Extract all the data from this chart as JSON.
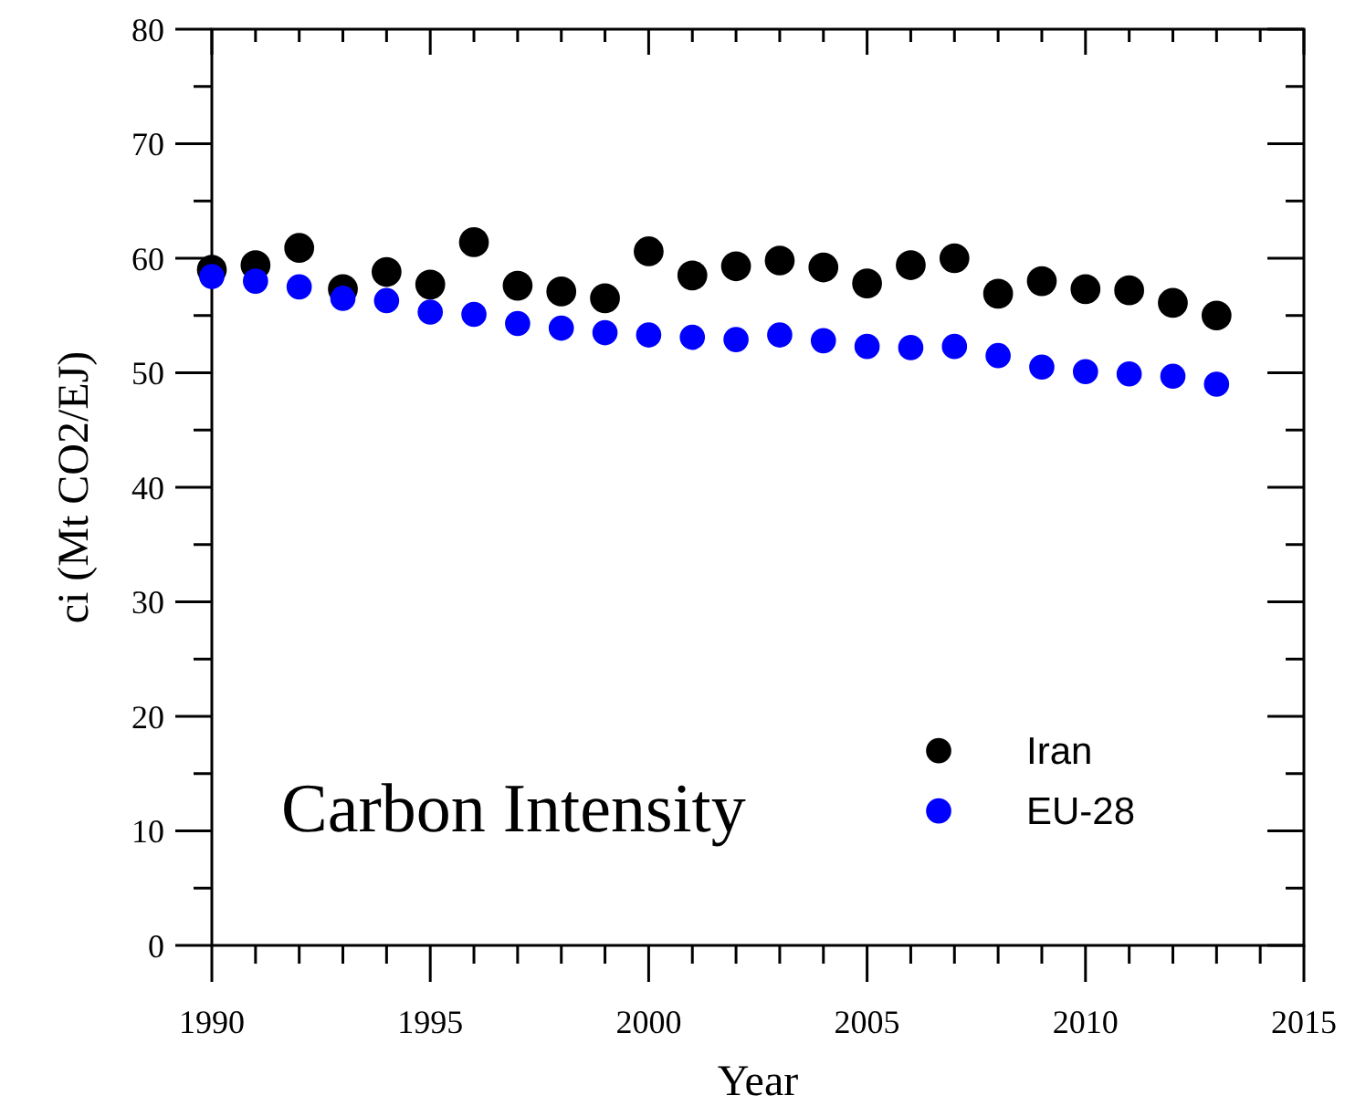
{
  "chart_data": {
    "type": "scatter",
    "xlabel": "Year",
    "ylabel": "ci (Mt CO2/EJ)",
    "annotations": [
      "Carbon Intensity"
    ],
    "x": [
      1990,
      1991,
      1992,
      1993,
      1994,
      1995,
      1996,
      1997,
      1998,
      1999,
      2000,
      2001,
      2002,
      2003,
      2004,
      2005,
      2006,
      2007,
      2008,
      2009,
      2010,
      2011,
      2012,
      2013
    ],
    "series": [
      {
        "name": "Iran",
        "color": "#000000",
        "values": [
          59.0,
          59.4,
          60.9,
          57.3,
          58.8,
          57.7,
          61.4,
          57.6,
          57.1,
          56.5,
          60.6,
          58.5,
          59.3,
          59.8,
          59.2,
          57.8,
          59.4,
          60.0,
          56.9,
          58.0,
          57.3,
          57.2,
          56.1,
          55.0
        ]
      },
      {
        "name": "EU-28",
        "color": "#0000ff",
        "values": [
          58.4,
          58.0,
          57.5,
          56.5,
          56.3,
          55.3,
          55.1,
          54.3,
          53.9,
          53.5,
          53.3,
          53.1,
          52.9,
          53.3,
          52.8,
          52.3,
          52.2,
          52.3,
          51.5,
          50.5,
          50.1,
          49.9,
          49.7,
          49.0
        ]
      }
    ],
    "xlim": [
      1990,
      2015
    ],
    "xticks": [
      1990,
      {
        "value": 1991,
        "label": null
      },
      {
        "value": 1992,
        "label": null
      },
      {
        "value": 1993,
        "label": null
      },
      {
        "value": 1994,
        "label": null
      },
      1995,
      {
        "value": 1996,
        "label": null
      },
      {
        "value": 1997,
        "label": null
      },
      {
        "value": 1998,
        "label": null
      },
      {
        "value": 1999,
        "label": null
      },
      2000,
      {
        "value": 2001,
        "label": null
      },
      {
        "value": 2002,
        "label": null
      },
      {
        "value": 2003,
        "label": null
      },
      {
        "value": 2004,
        "label": null
      },
      2005,
      {
        "value": 2006,
        "label": null
      },
      {
        "value": 2007,
        "label": null
      },
      {
        "value": 2008,
        "label": null
      },
      {
        "value": 2009,
        "label": null
      },
      2010,
      {
        "value": 2011,
        "label": null
      },
      {
        "value": 2012,
        "label": null
      },
      {
        "value": 2013,
        "label": null
      },
      {
        "value": 2014,
        "label": null
      },
      2015
    ],
    "ylim": [
      0,
      80
    ],
    "yticks": [
      0,
      {
        "value": 5,
        "label": null
      },
      10,
      {
        "value": 15,
        "label": null
      },
      20,
      {
        "value": 25,
        "label": null
      },
      30,
      {
        "value": 35,
        "label": null
      },
      40,
      {
        "value": 45,
        "label": null
      },
      50,
      {
        "value": 55,
        "label": null
      },
      60,
      {
        "value": 65,
        "label": null
      },
      70,
      {
        "value": 75,
        "label": null
      },
      80
    ],
    "marker": "circle",
    "grid": false,
    "legend": "bottom right"
  }
}
